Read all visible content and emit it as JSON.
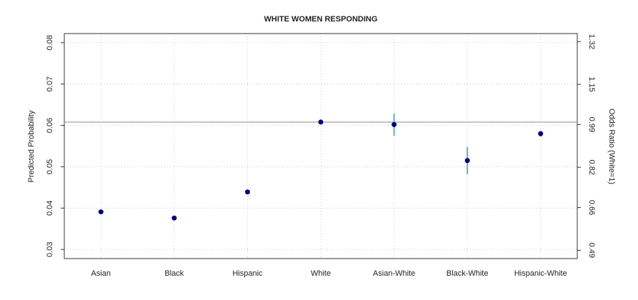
{
  "chart_data": {
    "type": "errorbar",
    "title": "WHITE WOMEN RESPONDING",
    "y_label": "Predicted Probability",
    "y2_label": "Odds Ratio (White=1)",
    "categories": [
      "Asian",
      "Black",
      "Hispanic",
      "White",
      "Asian-White",
      "Black-White",
      "Hispanic-White"
    ],
    "values": [
      0.0391,
      0.0376,
      0.0439,
      0.0608,
      0.0602,
      0.0515,
      0.058
    ],
    "errors": [
      0.0005,
      0.0004,
      0.0004,
      0.0001,
      0.0027,
      0.0033,
      0.0007
    ],
    "color": "#00007f",
    "error_color": "#6aa6d8",
    "reference_line": 0.0608,
    "ylim": [
      0.0278,
      0.0822
    ],
    "yticks": [
      0.03,
      0.04,
      0.05,
      0.06,
      0.07,
      0.08
    ],
    "y2lim": [
      0.457,
      1.352
    ],
    "y2ticks": [
      0.49,
      0.66,
      0.82,
      0.99,
      1.15,
      1.32
    ],
    "grid": true
  }
}
